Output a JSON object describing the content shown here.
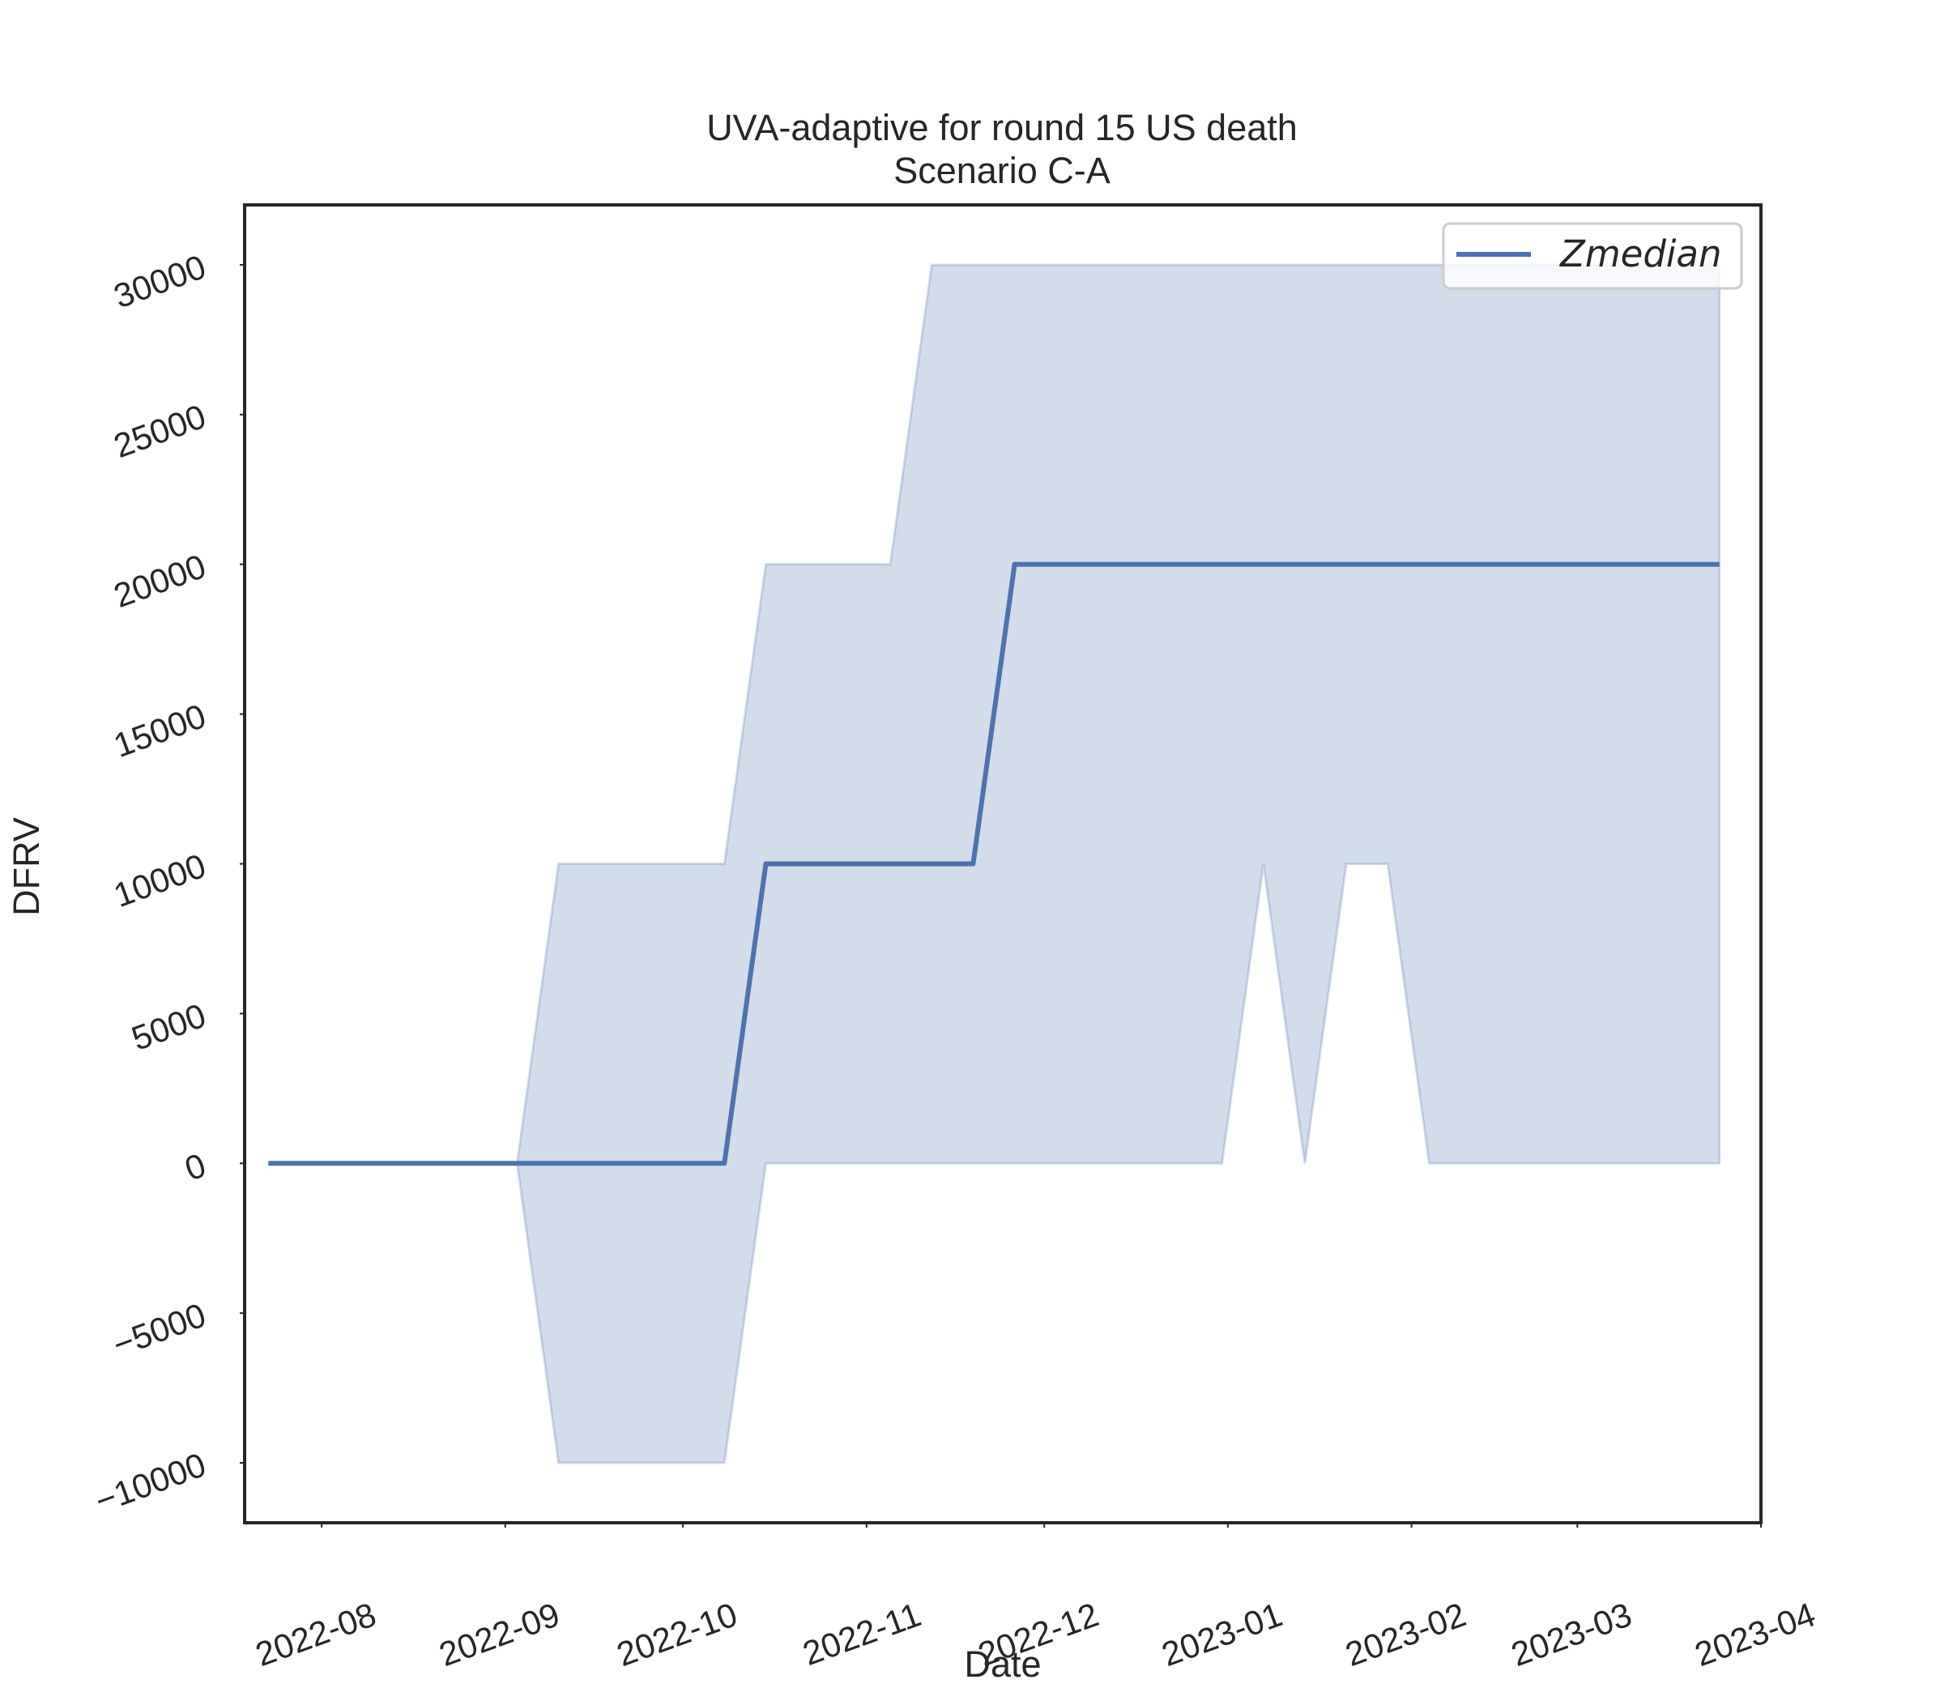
{
  "chart_data": {
    "type": "line",
    "title": "UVA-adaptive for round 15 US death",
    "subtitle": "Scenario C-A",
    "xlabel": "Date",
    "ylabel": "DFRV",
    "x_tick_labels": [
      "2022-08",
      "2022-09",
      "2022-10",
      "2022-11",
      "2022-12",
      "2023-01",
      "2023-02",
      "2023-03",
      "2023-04"
    ],
    "y_tick_labels": [
      "−10000",
      "−5000",
      "0",
      "5000",
      "10000",
      "15000",
      "20000",
      "25000",
      "30000"
    ],
    "y_ticks": [
      -10000,
      -5000,
      0,
      5000,
      10000,
      15000,
      20000,
      25000,
      30000
    ],
    "xlim": [
      "2022-07-19",
      "2023-04-01"
    ],
    "ylim": [
      -12000,
      32000
    ],
    "grid": false,
    "legend_position": "top-right",
    "colors": {
      "line": "#4c72b0",
      "band": "#4c72b0",
      "frame": "#262626"
    },
    "series": [
      {
        "name": "Zmedian",
        "x": [
          "2022-07-23",
          "2022-08-06",
          "2022-08-13",
          "2022-08-20",
          "2022-08-27",
          "2022-09-03",
          "2022-09-10",
          "2022-09-17",
          "2022-09-24",
          "2022-10-01",
          "2022-10-08",
          "2022-10-15",
          "2022-10-22",
          "2022-10-29",
          "2022-11-05",
          "2022-11-12",
          "2022-11-19",
          "2022-11-26",
          "2022-12-03",
          "2022-12-10",
          "2022-12-17",
          "2022-12-24",
          "2022-12-31",
          "2023-01-07",
          "2023-01-14",
          "2023-01-21",
          "2023-01-28",
          "2023-02-04",
          "2023-02-11",
          "2023-02-18",
          "2023-02-25",
          "2023-03-04",
          "2023-03-11",
          "2023-03-18",
          "2023-03-25"
        ],
        "values": [
          0,
          0,
          0,
          0,
          0,
          0,
          0,
          0,
          0,
          0,
          0,
          10000,
          10000,
          10000,
          10000,
          10000,
          10000,
          20000,
          20000,
          20000,
          20000,
          20000,
          20000,
          20000,
          20000,
          20000,
          20000,
          20000,
          20000,
          20000,
          20000,
          20000,
          20000,
          20000,
          20000
        ],
        "lower": [
          0,
          0,
          0,
          0,
          0,
          0,
          -10000,
          -10000,
          -10000,
          -10000,
          -10000,
          0,
          0,
          0,
          0,
          0,
          0,
          0,
          0,
          0,
          0,
          0,
          0,
          10000,
          0,
          10000,
          10000,
          0,
          0,
          0,
          0,
          0,
          0,
          0,
          0
        ],
        "upper": [
          0,
          0,
          0,
          0,
          0,
          0,
          10000,
          10000,
          10000,
          10000,
          10000,
          20000,
          20000,
          20000,
          20000,
          30000,
          30000,
          30000,
          30000,
          30000,
          30000,
          30000,
          30000,
          30000,
          30000,
          30000,
          30000,
          30000,
          30000,
          30000,
          30000,
          30000,
          30000,
          30000,
          30000
        ]
      }
    ]
  }
}
